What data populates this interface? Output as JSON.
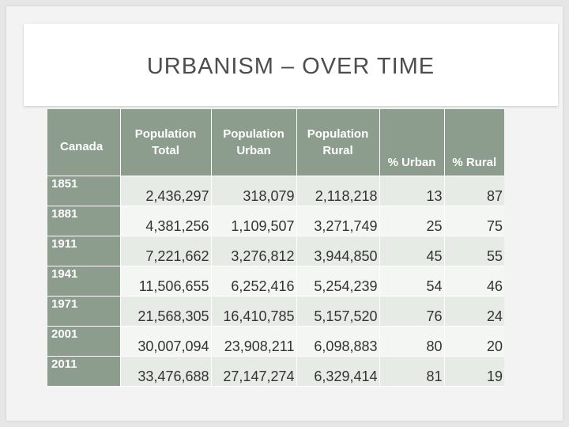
{
  "slide": {
    "title": "URBANISM – OVER TIME"
  },
  "table": {
    "corner_label": "Canada",
    "columns": [
      "Population Total",
      "Population Urban",
      "Population Rural",
      "% Urban",
      "% Rural"
    ],
    "rows": [
      {
        "year": "1851",
        "total": "2,436,297",
        "urban": "318,079",
        "rural": "2,118,218",
        "pct_urban": "13",
        "pct_rural": "87"
      },
      {
        "year": "1881",
        "total": "4,381,256",
        "urban": "1,109,507",
        "rural": "3,271,749",
        "pct_urban": "25",
        "pct_rural": "75"
      },
      {
        "year": "1911",
        "total": "7,221,662",
        "urban": "3,276,812",
        "rural": "3,944,850",
        "pct_urban": "45",
        "pct_rural": "55"
      },
      {
        "year": "1941",
        "total": "11,506,655",
        "urban": "6,252,416",
        "rural": "5,254,239",
        "pct_urban": "54",
        "pct_rural": "46"
      },
      {
        "year": "1971",
        "total": "21,568,305",
        "urban": "16,410,785",
        "rural": "5,157,520",
        "pct_urban": "76",
        "pct_rural": "24"
      },
      {
        "year": "2001",
        "total": "30,007,094",
        "urban": "23,908,211",
        "rural": "6,098,883",
        "pct_urban": "80",
        "pct_rural": "20"
      },
      {
        "year": "2011",
        "total": "33,476,688",
        "urban": "27,147,274",
        "rural": "6,329,414",
        "pct_urban": "81",
        "pct_rural": "19"
      }
    ]
  },
  "colors": {
    "header_fill": "#8c9c8d",
    "row_band_dark": "#e7ebe6",
    "row_band_light": "#f4f6f3",
    "title_text": "#4d4d4d"
  }
}
